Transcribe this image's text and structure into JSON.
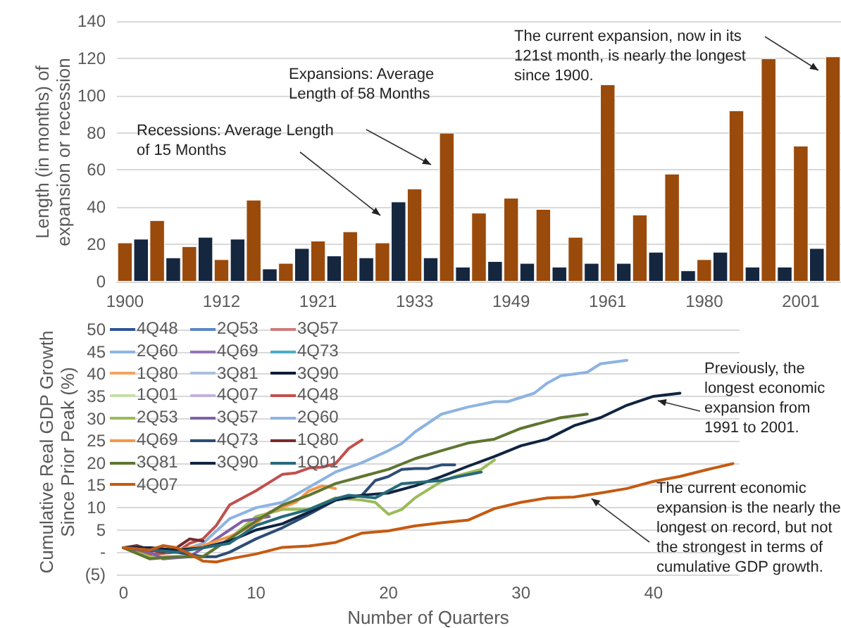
{
  "chart_data": [
    {
      "type": "bar",
      "ylabel": "Length (in months) of expansion or recession",
      "categories": [
        "1900",
        null,
        null,
        null,
        null,
        null,
        "1912",
        null,
        null,
        null,
        null,
        null,
        "1921",
        null,
        null,
        null,
        null,
        null,
        "1933",
        null,
        null,
        null,
        null,
        null,
        "1949",
        null,
        null,
        null,
        null,
        null,
        "1961",
        null,
        null,
        null,
        null,
        null,
        "1980",
        null,
        null,
        null,
        null,
        null,
        "2001",
        null,
        null
      ],
      "values": [
        21,
        23,
        33,
        13,
        19,
        24,
        12,
        23,
        44,
        7,
        10,
        18,
        22,
        14,
        27,
        13,
        21,
        43,
        50,
        13,
        80,
        8,
        37,
        11,
        45,
        10,
        39,
        8,
        24,
        10,
        106,
        10,
        36,
        16,
        58,
        6,
        12,
        16,
        92,
        8,
        120,
        8,
        73,
        18,
        121
      ],
      "colors": [
        "#9a4a0b",
        "#15263f",
        "#9a4a0b",
        "#15263f",
        "#9a4a0b",
        "#15263f",
        "#9a4a0b",
        "#15263f",
        "#9a4a0b",
        "#15263f",
        "#9a4a0b",
        "#15263f",
        "#9a4a0b",
        "#15263f",
        "#9a4a0b",
        "#15263f",
        "#9a4a0b",
        "#15263f",
        "#9a4a0b",
        "#15263f",
        "#9a4a0b",
        "#15263f",
        "#9a4a0b",
        "#15263f",
        "#9a4a0b",
        "#15263f",
        "#9a4a0b",
        "#15263f",
        "#9a4a0b",
        "#15263f",
        "#9a4a0b",
        "#15263f",
        "#9a4a0b",
        "#15263f",
        "#9a4a0b",
        "#15263f",
        "#9a4a0b",
        "#15263f",
        "#9a4a0b",
        "#15263f",
        "#9a4a0b",
        "#15263f",
        "#9a4a0b",
        "#15263f",
        "#9a4a0b"
      ],
      "ylim": [
        0,
        140
      ],
      "yticks": [
        0,
        20,
        40,
        60,
        80,
        100,
        120,
        140
      ],
      "grid": true,
      "annotations": [
        "Recessions: Average Length of 15 Months",
        "Expansions: Average Length of 58 Months",
        "The current expansion, now in its 121st month, is nearly the longest since 1900."
      ]
    },
    {
      "type": "line",
      "xlabel": "Number of Quarters",
      "ylabel": "Cumulative Real GDP Growth Since Prior Peak (%)",
      "xlim": [
        -0.5,
        46.5
      ],
      "xticks": [
        0,
        10,
        20,
        30,
        40
      ],
      "ylim": [
        -5,
        50
      ],
      "yticks": [
        {
          "value": -5,
          "label": "(5)"
        },
        {
          "value": 0,
          "label": "-"
        },
        5,
        10,
        15,
        20,
        25,
        30,
        35,
        40,
        45,
        50
      ],
      "grid": "y",
      "legend": "top left",
      "annotations": [
        {
          "text": "Previously, the longest economic expansion from 1991 to 2001.",
          "x": 40,
          "y": 35
        },
        {
          "text": "The current economic expansion is the nearly the longest on record, but not the strongest in terms of cumulative GDP growth.",
          "x": 35,
          "y": 13
        }
      ],
      "series": [
        {
          "name": "4Q48",
          "color": "#2f5597"
        },
        {
          "name": "2Q53",
          "color": "#5b87c5"
        },
        {
          "name": "3Q57",
          "color": "#d07a7a"
        },
        {
          "name": "2Q60",
          "color": "#8fb4e8"
        },
        {
          "name": "4Q69",
          "color": "#9673b9"
        },
        {
          "name": "4Q73",
          "color": "#4bacc6"
        },
        {
          "name": "1Q80",
          "color": "#f4a460"
        },
        {
          "name": "3Q81",
          "color": "#a9bfe0"
        },
        {
          "name": "3Q90",
          "color": "#0d1b36"
        },
        {
          "name": "1Q01",
          "color": "#c5dfa8"
        },
        {
          "name": "4Q07",
          "color": "#c3b1d9"
        },
        {
          "name": "4Q48",
          "color": "#c0504d",
          "x": [
            0,
            2,
            4,
            5,
            6,
            7,
            8,
            10,
            12,
            13,
            14,
            15,
            16,
            17,
            18
          ],
          "values": [
            1,
            -0.5,
            0,
            2,
            3,
            6,
            10.6,
            13.8,
            17.5,
            17.8,
            18.9,
            19.1,
            19.9,
            23.3,
            25.2
          ]
        },
        {
          "name": "2Q53",
          "color": "#9bbb59",
          "x": [
            0,
            2,
            4,
            6,
            8,
            10,
            12,
            14,
            16,
            18,
            19,
            20,
            21,
            22,
            24,
            25,
            27,
            28
          ],
          "values": [
            1,
            -1,
            -1,
            -1,
            3,
            8,
            9.6,
            9.6,
            12.2,
            11.7,
            11.2,
            8.5,
            9.6,
            12.2,
            15.9,
            17,
            18.6,
            20.7
          ]
        },
        {
          "name": "3Q57",
          "color": "#7f60a8",
          "x": [
            0,
            2,
            3,
            5,
            6,
            7,
            8,
            9,
            10,
            11
          ],
          "values": [
            1,
            0,
            -1.5,
            -1,
            1,
            3,
            5,
            7,
            7.5,
            8
          ]
        },
        {
          "name": "2Q60",
          "color": "#8db3e2",
          "x": [
            0,
            2,
            4,
            6,
            8,
            10,
            12,
            14,
            16,
            18,
            20,
            21,
            22,
            24,
            26,
            28,
            29,
            31,
            32,
            33,
            35,
            36,
            38
          ],
          "values": [
            1,
            1,
            0,
            2,
            7.5,
            10,
            11.2,
            14.6,
            18,
            20.1,
            22.8,
            24.4,
            27,
            31,
            32.6,
            33.8,
            33.8,
            35.7,
            38,
            39.6,
            40.4,
            42.3,
            43.1
          ]
        },
        {
          "name": "4Q69",
          "color": "#f79646",
          "x": [
            0,
            2,
            4,
            6,
            8,
            10,
            11,
            13,
            14,
            15,
            16
          ],
          "values": [
            1,
            1,
            0.5,
            1.5,
            3.5,
            6.4,
            9,
            11.2,
            13.8,
            14.9,
            14.3
          ]
        },
        {
          "name": "4Q73",
          "color": "#2c4d75",
          "x": [
            0,
            2,
            4,
            6,
            7,
            8,
            10,
            12,
            14,
            16,
            18,
            19,
            20,
            21,
            22,
            23,
            24,
            25
          ],
          "values": [
            1,
            0.5,
            0,
            -1,
            -1,
            0,
            3,
            5.5,
            8.5,
            11.7,
            12.8,
            16.1,
            17,
            18.6,
            18.8,
            18.8,
            19.6,
            19.6
          ]
        },
        {
          "name": "1Q80",
          "color": "#772c2a",
          "x": [
            0,
            1,
            2,
            3,
            4,
            5,
            6
          ],
          "values": [
            1,
            1.5,
            0.5,
            0,
            1,
            3,
            2.5
          ]
        },
        {
          "name": "3Q81",
          "color": "#5f7530",
          "x": [
            0,
            2,
            4,
            6,
            8,
            10,
            12,
            14,
            16,
            18,
            20,
            22,
            24,
            26,
            28,
            30,
            32,
            33,
            35
          ],
          "values": [
            1,
            -1.5,
            -1,
            -1,
            3,
            7,
            10.6,
            12.8,
            15.4,
            17,
            18.6,
            21,
            22.8,
            24.5,
            25.4,
            27.8,
            29.4,
            30.2,
            31
          ]
        },
        {
          "name": "3Q90",
          "color": "#0f2440",
          "x": [
            0,
            2,
            4,
            6,
            8,
            10,
            12,
            14,
            16,
            18,
            20,
            22,
            24,
            26,
            28,
            30,
            32,
            34,
            36,
            38,
            40,
            42
          ],
          "values": [
            1,
            1,
            0.5,
            1,
            2.5,
            5,
            6.4,
            9,
            11.7,
            12.8,
            13.3,
            14.9,
            17,
            19.3,
            21.5,
            23.9,
            25.4,
            28.4,
            30.2,
            33,
            35,
            35.7
          ]
        },
        {
          "name": "1Q01",
          "color": "#276a7c",
          "x": [
            0,
            2,
            4,
            6,
            8,
            10,
            12,
            14,
            16,
            17,
            19,
            21,
            24,
            25,
            27
          ],
          "values": [
            1,
            0.5,
            0,
            1,
            2,
            6,
            8,
            9.6,
            12,
            12.8,
            12.2,
            15.4,
            16.1,
            16.8,
            18
          ]
        },
        {
          "name": "4Q07",
          "color": "#c55a11",
          "x": [
            0,
            2,
            3,
            4,
            5,
            6,
            7,
            8,
            10,
            12,
            14,
            16,
            18,
            20,
            22,
            24,
            26,
            28,
            30,
            32,
            34,
            36,
            38,
            40,
            42,
            44,
            46
          ],
          "values": [
            1,
            0.5,
            1.5,
            1,
            -0.4,
            -2,
            -2.2,
            -1.5,
            -0.4,
            1.1,
            1.4,
            2.2,
            4.3,
            4.8,
            5.9,
            6.6,
            7.2,
            9.8,
            11.2,
            12.2,
            12.4,
            13.3,
            14.3,
            15.9,
            17,
            18.5,
            19.9
          ]
        }
      ]
    }
  ]
}
